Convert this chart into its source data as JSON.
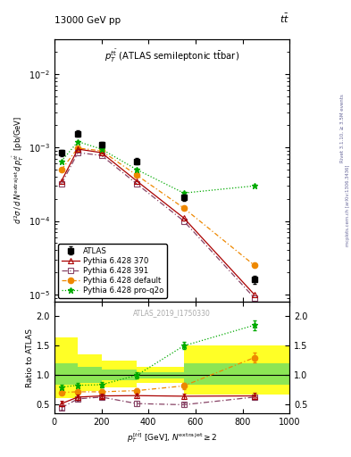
{
  "x_pts": [
    30,
    100,
    200,
    350,
    550,
    850
  ],
  "atlas_y": [
    0.00085,
    0.00155,
    0.0011,
    0.00065,
    0.00021,
    1.6e-05
  ],
  "atlas_yerr": [
    8e-05,
    0.00015,
    0.0001,
    6e-05,
    2e-05,
    2e-06
  ],
  "p370_y": [
    0.00035,
    0.00095,
    0.00085,
    0.00035,
    0.00011,
    1e-05
  ],
  "p370_yerr": [
    3e-05,
    7e-05,
    6e-05,
    3e-05,
    1e-05,
    1e-06
  ],
  "p391_y": [
    0.00032,
    0.00085,
    0.00078,
    0.00032,
    0.0001,
    9e-06
  ],
  "p391_yerr": [
    3e-05,
    6e-05,
    5e-05,
    3e-05,
    1e-05,
    1e-06
  ],
  "pdef_y": [
    0.0005,
    0.00098,
    0.0009,
    0.00042,
    0.00015,
    2.5e-05
  ],
  "pdef_yerr": [
    4e-05,
    7e-05,
    6e-05,
    4e-05,
    1.5e-05,
    2.5e-06
  ],
  "pproq2o_y": [
    0.00065,
    0.0012,
    0.00095,
    0.0005,
    0.00024,
    0.0003
  ],
  "pproq2o_yerr": [
    5e-05,
    9e-05,
    7e-05,
    4e-05,
    2e-05,
    2.5e-05
  ],
  "ratio_p370_y": [
    0.52,
    0.63,
    0.65,
    0.655,
    0.645,
    0.65
  ],
  "ratio_p370_yerr": [
    0.04,
    0.04,
    0.04,
    0.04,
    0.04,
    0.05
  ],
  "ratio_p391_y": [
    0.45,
    0.6,
    0.63,
    0.52,
    0.5,
    0.63
  ],
  "ratio_p391_yerr": [
    0.04,
    0.04,
    0.04,
    0.04,
    0.04,
    0.05
  ],
  "ratio_pdef_y": [
    0.71,
    0.72,
    0.72,
    0.74,
    0.82,
    1.3
  ],
  "ratio_pdef_yerr": [
    0.04,
    0.04,
    0.04,
    0.04,
    0.05,
    0.08
  ],
  "ratio_pproq2o_y": [
    0.8,
    0.83,
    0.84,
    1.0,
    1.5,
    1.85
  ],
  "ratio_pproq2o_yerr": [
    0.04,
    0.04,
    0.04,
    0.05,
    0.06,
    0.08
  ],
  "band_edges": [
    0,
    100,
    200,
    350,
    550,
    1000
  ],
  "yellow_top": [
    1.65,
    1.35,
    1.25,
    1.15,
    1.5
  ],
  "green_top": [
    1.2,
    1.15,
    1.1,
    1.05,
    1.2
  ],
  "color_atlas": "#000000",
  "color_p370": "#aa0000",
  "color_p391": "#884466",
  "color_pdef": "#ee8800",
  "color_pproq2o": "#00aa00",
  "xlim": [
    0,
    1000
  ],
  "ylim_main": [
    8e-06,
    0.03
  ],
  "ylim_ratio": [
    0.35,
    2.25
  ],
  "legend_entries": [
    "ATLAS",
    "Pythia 6.428 370",
    "Pythia 6.428 391",
    "Pythia 6.428 default",
    "Pythia 6.428 pro-q2o"
  ]
}
